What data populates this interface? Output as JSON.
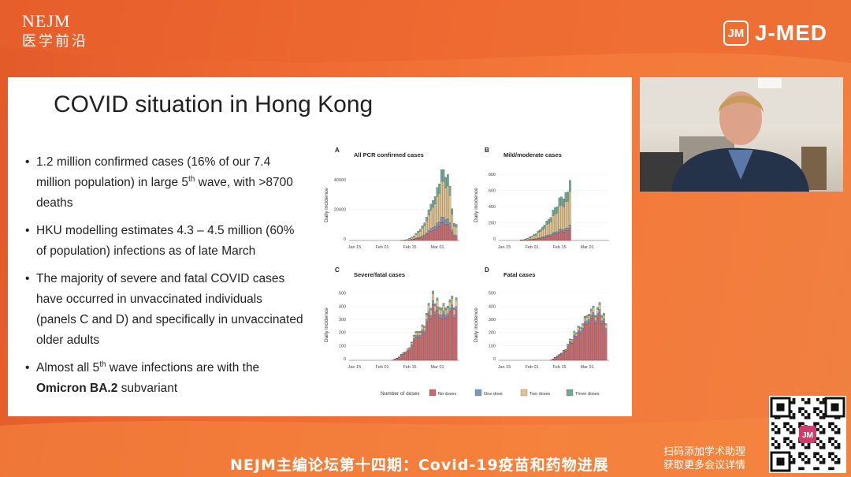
{
  "header": {
    "nejm_line1": "NEJM",
    "nejm_line2": "医学前沿",
    "jmed_box": "JM",
    "jmed_text": "J-MED"
  },
  "slide": {
    "title": "COVID situation in Hong Kong",
    "bullets": [
      {
        "pre": "1.2 million confirmed cases (16% of our 7.4 million population) in large 5",
        "sup": "th",
        "post": " wave, with >8700 deaths"
      },
      {
        "text": "HKU modelling estimates 4.3 – 4.5 million (60% of population) infections as of late March"
      },
      {
        "text": "The majority of severe and fatal COVID cases have occurred in unvaccinated individuals (panels C and D) and specifically in unvaccinated older adults"
      },
      {
        "pre": "Almost all 5",
        "sup": "th",
        "mid": " wave infections are with the ",
        "bold": "Omicron BA.2",
        "post": " subvariant"
      }
    ]
  },
  "figure": {
    "ylabel": "Daily incidence",
    "xticks": [
      "Jan 15",
      "Feb 01",
      "Feb 15",
      "Mar 01"
    ],
    "legend_title": "Number of doses",
    "legend": [
      {
        "label": "No doses",
        "color": "#c96a6e"
      },
      {
        "label": "One dose",
        "color": "#7f97b8"
      },
      {
        "label": "Two doses",
        "color": "#e0c48f"
      },
      {
        "label": "Three doses",
        "color": "#6fa895"
      }
    ],
    "panels": [
      {
        "letter": "A",
        "title": "All PCR confirmed cases",
        "yticks": [
          "0",
          "20000",
          "40000"
        ]
      },
      {
        "letter": "B",
        "title": "Mild/moderate cases",
        "yticks": [
          "0",
          "200",
          "400",
          "600",
          "800"
        ]
      },
      {
        "letter": "C",
        "title": "Severe/fatal cases",
        "yticks": [
          "0",
          "100",
          "200",
          "300",
          "400",
          "500"
        ]
      },
      {
        "letter": "D",
        "title": "Fatal cases",
        "yticks": [
          "0",
          "100",
          "200",
          "300",
          "400",
          "500"
        ]
      }
    ]
  },
  "footer": {
    "title": "NEJM主编论坛第十四期：Covid-19疫苗和药物进展",
    "qr_line1": "扫码添加学术助理",
    "qr_line2": "获取更多会议详情",
    "qr_center": "JM"
  },
  "colors": {
    "background": "#ee6d34",
    "slide": "#ffffff",
    "no_dose": "#c96a6e",
    "one_dose": "#7f97b8",
    "two_doses": "#e0c48f",
    "three_doses": "#6fa895"
  }
}
